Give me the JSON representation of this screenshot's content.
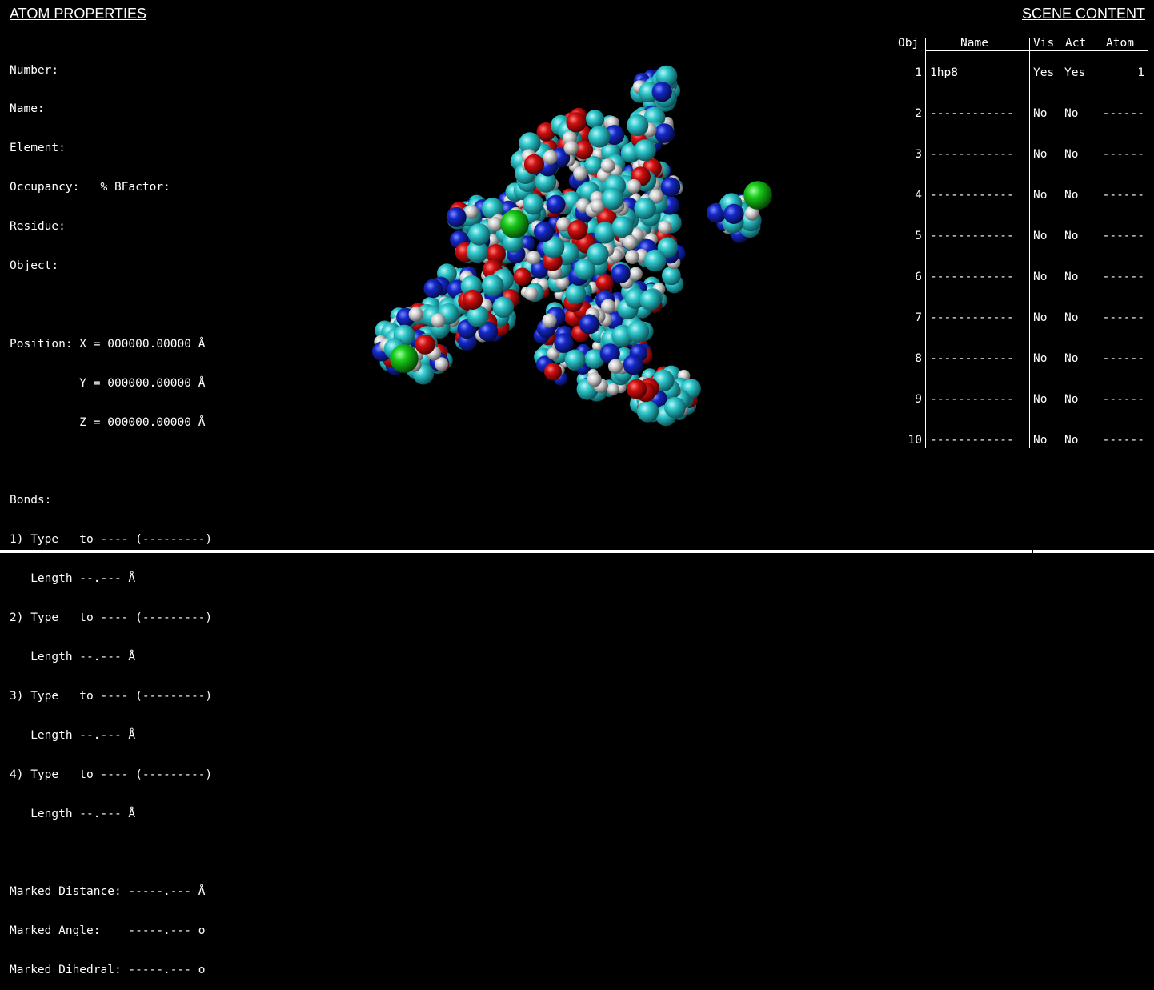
{
  "atom_properties": {
    "title": "ATOM PROPERTIES",
    "number_label": "Number:",
    "name_label": "Name:",
    "element_label": "Element:",
    "occupancy_label": "Occupancy:   % BFactor:",
    "residue_label": "Residue:",
    "object_label": "Object:",
    "position": {
      "x": "Position: X = 000000.00000 Å",
      "y": "          Y = 000000.00000 Å",
      "z": "          Z = 000000.00000 Å"
    },
    "bonds_label": "Bonds:",
    "bonds": [
      {
        "type": "1) Type   to ---- (---------)",
        "length": "   Length --.--- Å"
      },
      {
        "type": "2) Type   to ---- (---------)",
        "length": "   Length --.--- Å"
      },
      {
        "type": "3) Type   to ---- (---------)",
        "length": "   Length --.--- Å"
      },
      {
        "type": "4) Type   to ---- (---------)",
        "length": "   Length --.--- Å"
      }
    ],
    "marked_distance": "Marked Distance: -----.--- Å",
    "marked_angle": "Marked Angle:    -----.--- o",
    "marked_dihedral": "Marked Dihedral: -----.--- o"
  },
  "scene_content": {
    "title": "SCENE CONTENT",
    "columns": [
      "Obj",
      "Name",
      "Vis",
      "Act",
      "Atom"
    ],
    "rows": [
      {
        "obj": "1",
        "name": "1hp8",
        "vis": "Yes",
        "act": "Yes",
        "atom": "1"
      },
      {
        "obj": "2",
        "name": "------------",
        "vis": "No",
        "act": "No",
        "atom": "------"
      },
      {
        "obj": "3",
        "name": "------------",
        "vis": "No",
        "act": "No",
        "atom": "------"
      },
      {
        "obj": "4",
        "name": "------------",
        "vis": "No",
        "act": "No",
        "atom": "------"
      },
      {
        "obj": "5",
        "name": "------------",
        "vis": "No",
        "act": "No",
        "atom": "------"
      },
      {
        "obj": "6",
        "name": "------------",
        "vis": "No",
        "act": "No",
        "atom": "------"
      },
      {
        "obj": "7",
        "name": "------------",
        "vis": "No",
        "act": "No",
        "atom": "------"
      },
      {
        "obj": "8",
        "name": "------------",
        "vis": "No",
        "act": "No",
        "atom": "------"
      },
      {
        "obj": "9",
        "name": "------------",
        "vis": "No",
        "act": "No",
        "atom": "------"
      },
      {
        "obj": "10",
        "name": "------------",
        "vis": "No",
        "act": "No",
        "atom": "------"
      }
    ]
  },
  "molecule": {
    "colors": {
      "carbon": "#2ec8cc",
      "oxygen": "#d01010",
      "nitrogen": "#1428c8",
      "hydrogen": "#d8d8d8",
      "chlorine": "#18c818"
    }
  }
}
